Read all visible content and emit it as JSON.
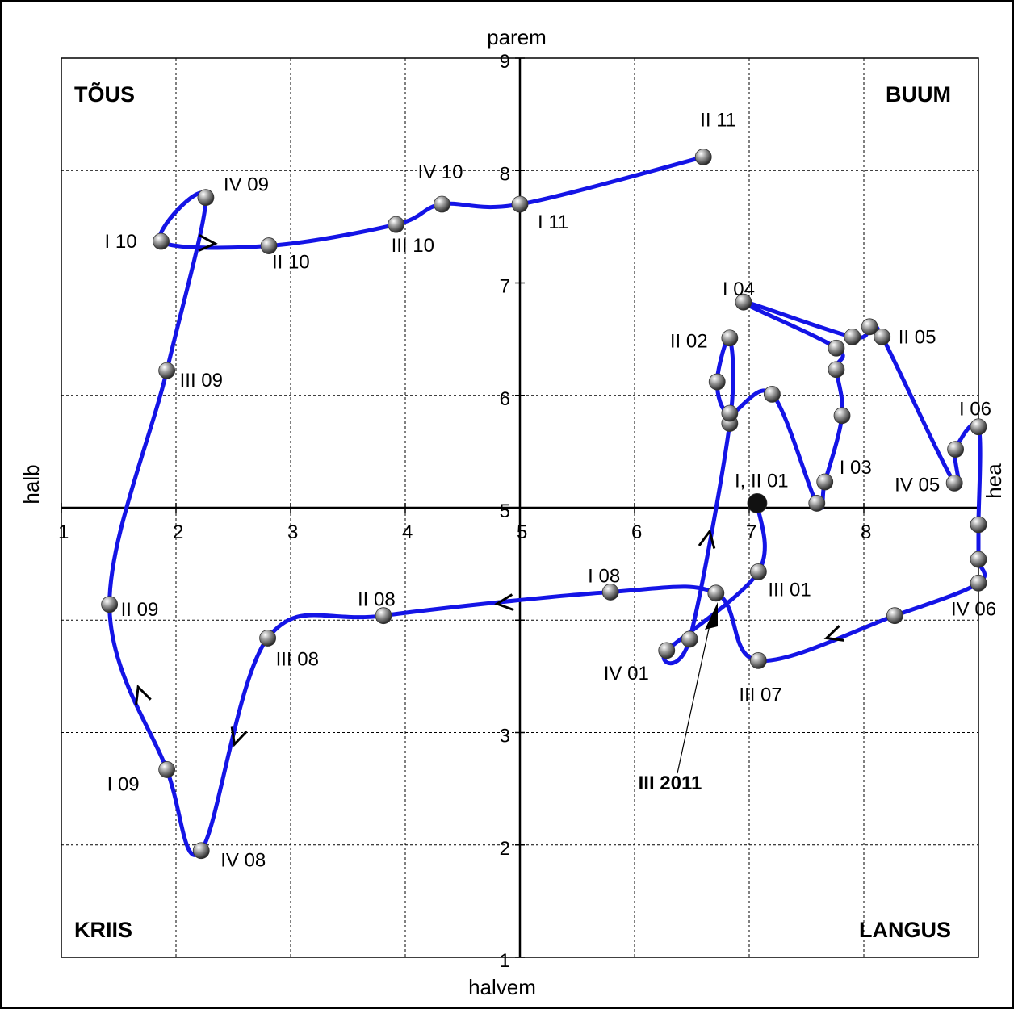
{
  "chart_data": {
    "type": "scatter",
    "xlabel_top": "parem",
    "xlabel_bottom": "halvem",
    "ylabel_left": "halb",
    "ylabel_right": "hea",
    "xlim": [
      1,
      9
    ],
    "ylim": [
      1,
      9
    ],
    "x_ticks": [
      "1",
      "2",
      "3",
      "4",
      "5",
      "6",
      "7",
      "8"
    ],
    "y_ticks": [
      "1",
      "2",
      "3",
      "5",
      "6",
      "7",
      "8",
      "9"
    ],
    "grid": true,
    "quadrants": {
      "top_left": "TÕUS",
      "top_right": "BUUM",
      "bottom_left": "KRIIS",
      "bottom_right": "LANGUS"
    },
    "series": [
      {
        "color": "#1414e6",
        "points": [
          {
            "label": "I, II 01",
            "x": 7.07,
            "y": 5.04
          },
          {
            "label": "III 01",
            "x": 7.08,
            "y": 4.43
          },
          {
            "label": "IV 01",
            "x": 6.28,
            "y": 3.73
          },
          {
            "label": "",
            "x": 6.48,
            "y": 3.83
          },
          {
            "label": "",
            "x": 6.83,
            "y": 5.75
          },
          {
            "label": "II 02",
            "x": 6.83,
            "y": 6.51
          },
          {
            "label": "",
            "x": 6.72,
            "y": 6.12
          },
          {
            "label": "",
            "x": 6.83,
            "y": 5.84
          },
          {
            "label": "",
            "x": 7.2,
            "y": 6.01
          },
          {
            "label": "",
            "x": 7.59,
            "y": 5.04
          },
          {
            "label": "I 03",
            "x": 7.66,
            "y": 5.23
          },
          {
            "label": "",
            "x": 7.81,
            "y": 5.82
          },
          {
            "label": "",
            "x": 7.76,
            "y": 6.23
          },
          {
            "label": "",
            "x": 7.76,
            "y": 6.42
          },
          {
            "label": "I 04",
            "x": 6.95,
            "y": 6.83
          },
          {
            "label": "",
            "x": 7.9,
            "y": 6.52
          },
          {
            "label": "",
            "x": 8.05,
            "y": 6.61
          },
          {
            "label": "II 05",
            "x": 8.16,
            "y": 6.52
          },
          {
            "label": "IV 05",
            "x": 8.79,
            "y": 5.22
          },
          {
            "label": "",
            "x": 8.8,
            "y": 5.52
          },
          {
            "label": "I 06",
            "x": 9.0,
            "y": 5.72
          },
          {
            "label": "",
            "x": 9.0,
            "y": 4.85
          },
          {
            "label": "",
            "x": 9.0,
            "y": 4.54
          },
          {
            "label": "IV 06",
            "x": 9.0,
            "y": 4.33
          },
          {
            "label": "",
            "x": 8.27,
            "y": 4.04
          },
          {
            "label": "III 07",
            "x": 7.08,
            "y": 3.64
          },
          {
            "label": "",
            "x": 6.71,
            "y": 4.24
          },
          {
            "label": "I 08",
            "x": 5.79,
            "y": 4.25
          },
          {
            "label": "II 08",
            "x": 3.81,
            "y": 4.04
          },
          {
            "label": "III 08",
            "x": 2.8,
            "y": 3.84
          },
          {
            "label": "IV 08",
            "x": 2.22,
            "y": 1.95
          },
          {
            "label": "I 09",
            "x": 1.92,
            "y": 2.67
          },
          {
            "label": "II 09",
            "x": 1.42,
            "y": 4.14
          },
          {
            "label": "III 09",
            "x": 1.92,
            "y": 6.22
          },
          {
            "label": "IV 09",
            "x": 2.26,
            "y": 7.76
          },
          {
            "label": "I 10",
            "x": 1.87,
            "y": 7.37
          },
          {
            "label": "II 10",
            "x": 2.81,
            "y": 7.33
          },
          {
            "label": "III 10",
            "x": 3.92,
            "y": 7.52
          },
          {
            "label": "IV 10",
            "x": 4.32,
            "y": 7.7
          },
          {
            "label": "I 11",
            "x": 5.0,
            "y": 7.7
          },
          {
            "label": "II 11",
            "x": 6.6,
            "y": 8.12
          },
          {
            "label": "III 2011",
            "x": 6.71,
            "y": 4.24
          }
        ]
      }
    ],
    "annotation": "III 2011"
  }
}
